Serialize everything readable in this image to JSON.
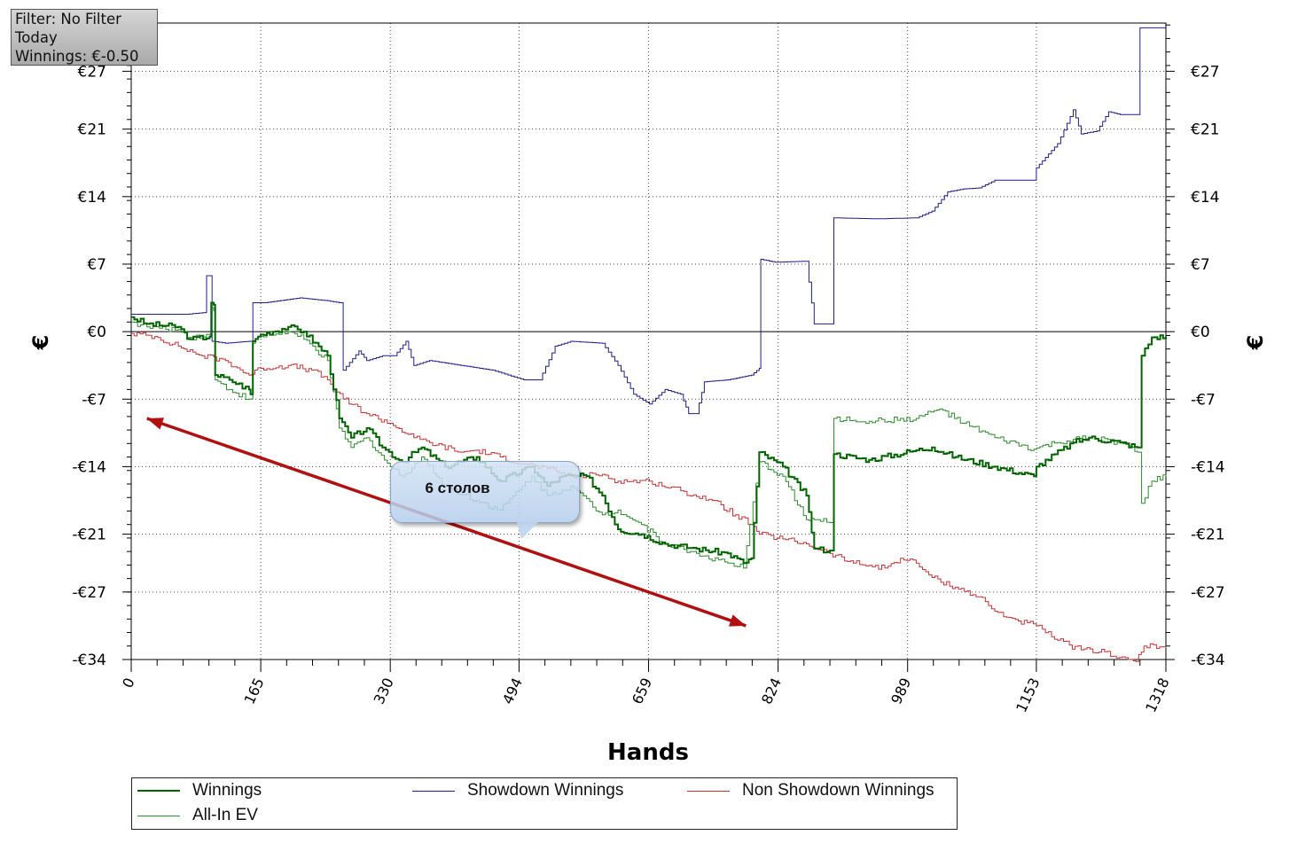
{
  "info": {
    "filter": "Filter: No Filter",
    "period": "Today",
    "winnings": "Winnings: €-0.50"
  },
  "chart_data": {
    "type": "line",
    "xlabel": "Hands",
    "ylabel_left": "€",
    "ylabel_right": "€",
    "xlim": [
      0,
      1318
    ],
    "ylim": [
      -34,
      32
    ],
    "x_ticks": [
      0,
      165,
      330,
      494,
      659,
      824,
      989,
      1153,
      1318
    ],
    "y_ticks": [
      {
        "value": 27,
        "label": "€27"
      },
      {
        "value": 21,
        "label": "€21"
      },
      {
        "value": 14,
        "label": "€14"
      },
      {
        "value": 7,
        "label": "€7"
      },
      {
        "value": 0,
        "label": "€0"
      },
      {
        "value": -7,
        "label": "-€7"
      },
      {
        "value": -14,
        "label": "-€14"
      },
      {
        "value": -21,
        "label": "-€21"
      },
      {
        "value": -27,
        "label": "-€27"
      },
      {
        "value": -34,
        "label": "-€34"
      }
    ],
    "grid": true,
    "legend_position": "bottom",
    "series": [
      {
        "name": "Winnings",
        "color": "#006400",
        "width": 2,
        "points": [
          [
            0,
            1.5
          ],
          [
            20,
            0.8
          ],
          [
            60,
            0.5
          ],
          [
            75,
            -0.8
          ],
          [
            100,
            -0.5
          ],
          [
            102,
            3
          ],
          [
            105,
            2.8
          ],
          [
            107,
            -4.5
          ],
          [
            125,
            -5
          ],
          [
            150,
            -6
          ],
          [
            152,
            -6.5
          ],
          [
            155,
            -1
          ],
          [
            165,
            -0.3
          ],
          [
            200,
            0.5
          ],
          [
            220,
            0
          ],
          [
            250,
            -2.5
          ],
          [
            265,
            -9
          ],
          [
            280,
            -11
          ],
          [
            300,
            -10
          ],
          [
            320,
            -12
          ],
          [
            345,
            -13.5
          ],
          [
            370,
            -12
          ],
          [
            400,
            -14
          ],
          [
            440,
            -13
          ],
          [
            470,
            -15.5
          ],
          [
            510,
            -14
          ],
          [
            530,
            -16
          ],
          [
            550,
            -15
          ],
          [
            580,
            -15
          ],
          [
            600,
            -17
          ],
          [
            620,
            -20.5
          ],
          [
            650,
            -21
          ],
          [
            680,
            -22
          ],
          [
            720,
            -22.5
          ],
          [
            760,
            -23
          ],
          [
            780,
            -24
          ],
          [
            790,
            -23.5
          ],
          [
            800,
            -12.5
          ],
          [
            830,
            -14
          ],
          [
            860,
            -17
          ],
          [
            870,
            -22.5
          ],
          [
            890,
            -22.7
          ],
          [
            895,
            -12.7
          ],
          [
            940,
            -13.3
          ],
          [
            1000,
            -12.3
          ],
          [
            1020,
            -12
          ],
          [
            1050,
            -13
          ],
          [
            1100,
            -14
          ],
          [
            1150,
            -15
          ],
          [
            1153,
            -14
          ],
          [
            1200,
            -11.5
          ],
          [
            1220,
            -11
          ],
          [
            1260,
            -11.5
          ],
          [
            1282,
            -12
          ],
          [
            1287,
            -2.5
          ],
          [
            1300,
            -0.6
          ],
          [
            1318,
            -0.5
          ]
        ]
      },
      {
        "name": "All-In EV",
        "color": "#2e8b2e",
        "width": 1,
        "points": [
          [
            0,
            1
          ],
          [
            20,
            0.5
          ],
          [
            60,
            0.2
          ],
          [
            75,
            -0.6
          ],
          [
            100,
            -0.3
          ],
          [
            102,
            2.5
          ],
          [
            105,
            2.2
          ],
          [
            107,
            -5
          ],
          [
            125,
            -6
          ],
          [
            150,
            -7
          ],
          [
            155,
            -1.2
          ],
          [
            165,
            -0.5
          ],
          [
            200,
            0
          ],
          [
            220,
            -0.8
          ],
          [
            250,
            -3
          ],
          [
            265,
            -10
          ],
          [
            280,
            -12
          ],
          [
            300,
            -11
          ],
          [
            330,
            -14
          ],
          [
            345,
            -15
          ],
          [
            370,
            -13
          ],
          [
            400,
            -16
          ],
          [
            440,
            -17.5
          ],
          [
            470,
            -18.5
          ],
          [
            510,
            -15
          ],
          [
            530,
            -17
          ],
          [
            560,
            -16
          ],
          [
            600,
            -19
          ],
          [
            620,
            -18.5
          ],
          [
            650,
            -20
          ],
          [
            680,
            -22
          ],
          [
            720,
            -23
          ],
          [
            760,
            -24
          ],
          [
            780,
            -24.5
          ],
          [
            800,
            -13.5
          ],
          [
            830,
            -15
          ],
          [
            860,
            -19.5
          ],
          [
            870,
            -19.5
          ],
          [
            890,
            -19.8
          ],
          [
            895,
            -9
          ],
          [
            940,
            -9.3
          ],
          [
            1000,
            -9
          ],
          [
            1030,
            -8
          ],
          [
            1060,
            -9.5
          ],
          [
            1100,
            -11
          ],
          [
            1150,
            -12.2
          ],
          [
            1180,
            -11.5
          ],
          [
            1220,
            -11
          ],
          [
            1260,
            -11.5
          ],
          [
            1282,
            -12.5
          ],
          [
            1287,
            -17.8
          ],
          [
            1300,
            -15.5
          ],
          [
            1318,
            -15
          ]
        ]
      },
      {
        "name": "Showdown Winnings",
        "color": "#1e1e8c",
        "width": 1,
        "points": [
          [
            0,
            1.8
          ],
          [
            70,
            1.8
          ],
          [
            95,
            2
          ],
          [
            96,
            5.8
          ],
          [
            102,
            5.8
          ],
          [
            103,
            -1
          ],
          [
            120,
            -1.2
          ],
          [
            150,
            -1
          ],
          [
            155,
            3
          ],
          [
            170,
            3
          ],
          [
            215,
            3.5
          ],
          [
            250,
            3.2
          ],
          [
            265,
            3
          ],
          [
            270,
            -4
          ],
          [
            290,
            -2
          ],
          [
            300,
            -3
          ],
          [
            320,
            -2.5
          ],
          [
            335,
            -2.5
          ],
          [
            350,
            -1
          ],
          [
            360,
            -3.5
          ],
          [
            380,
            -3
          ],
          [
            420,
            -3.5
          ],
          [
            460,
            -4
          ],
          [
            500,
            -5
          ],
          [
            520,
            -5
          ],
          [
            540,
            -1.5
          ],
          [
            560,
            -1
          ],
          [
            600,
            -1.2
          ],
          [
            620,
            -3.5
          ],
          [
            640,
            -6.5
          ],
          [
            660,
            -7.5
          ],
          [
            680,
            -6
          ],
          [
            700,
            -6.5
          ],
          [
            710,
            -8.5
          ],
          [
            720,
            -8.5
          ],
          [
            730,
            -5.2
          ],
          [
            760,
            -5
          ],
          [
            790,
            -4.5
          ],
          [
            800,
            -3.8
          ],
          [
            802,
            7.5
          ],
          [
            820,
            7.2
          ],
          [
            860,
            7.3
          ],
          [
            870,
            0.8
          ],
          [
            890,
            0.8
          ],
          [
            895,
            11.8
          ],
          [
            950,
            11.7
          ],
          [
            1000,
            11.8
          ],
          [
            1020,
            12.5
          ],
          [
            1040,
            14.5
          ],
          [
            1060,
            14.8
          ],
          [
            1080,
            14.9
          ],
          [
            1100,
            15.7
          ],
          [
            1150,
            15.7
          ],
          [
            1153,
            17
          ],
          [
            1180,
            19.5
          ],
          [
            1200,
            23
          ],
          [
            1210,
            20.5
          ],
          [
            1230,
            20.8
          ],
          [
            1245,
            22.8
          ],
          [
            1260,
            22.5
          ],
          [
            1280,
            22.5
          ],
          [
            1285,
            31.5
          ],
          [
            1318,
            31.5
          ]
        ]
      },
      {
        "name": "Non Showdown Winnings",
        "color": "#c83232",
        "width": 1,
        "points": [
          [
            0,
            -0.2
          ],
          [
            30,
            -0.5
          ],
          [
            60,
            -1.5
          ],
          [
            90,
            -2.5
          ],
          [
            120,
            -3
          ],
          [
            150,
            -4.5
          ],
          [
            165,
            -3.8
          ],
          [
            200,
            -3.5
          ],
          [
            230,
            -4
          ],
          [
            250,
            -5
          ],
          [
            270,
            -7
          ],
          [
            300,
            -8.5
          ],
          [
            330,
            -9.5
          ],
          [
            360,
            -11
          ],
          [
            380,
            -11.5
          ],
          [
            420,
            -12.5
          ],
          [
            440,
            -12.3
          ],
          [
            470,
            -13
          ],
          [
            500,
            -13.7
          ],
          [
            530,
            -14.2
          ],
          [
            560,
            -15
          ],
          [
            600,
            -14.8
          ],
          [
            620,
            -15.5
          ],
          [
            660,
            -15.5
          ],
          [
            700,
            -16.5
          ],
          [
            740,
            -17.5
          ],
          [
            770,
            -19
          ],
          [
            790,
            -20
          ],
          [
            800,
            -21
          ],
          [
            830,
            -21.5
          ],
          [
            860,
            -22
          ],
          [
            890,
            -23
          ],
          [
            920,
            -24
          ],
          [
            960,
            -24.5
          ],
          [
            980,
            -23.5
          ],
          [
            1000,
            -24
          ],
          [
            1020,
            -25.5
          ],
          [
            1050,
            -26.5
          ],
          [
            1080,
            -27.5
          ],
          [
            1100,
            -29
          ],
          [
            1130,
            -30
          ],
          [
            1153,
            -30.5
          ],
          [
            1180,
            -32
          ],
          [
            1210,
            -33
          ],
          [
            1240,
            -33.2
          ],
          [
            1270,
            -34
          ],
          [
            1280,
            -34.2
          ],
          [
            1290,
            -32.6
          ],
          [
            1318,
            -32.8
          ]
        ]
      }
    ],
    "annotation": {
      "text": "6 столов",
      "arrow_from": [
        20,
        -9
      ],
      "arrow_to": [
        783,
        -30.5
      ]
    }
  }
}
